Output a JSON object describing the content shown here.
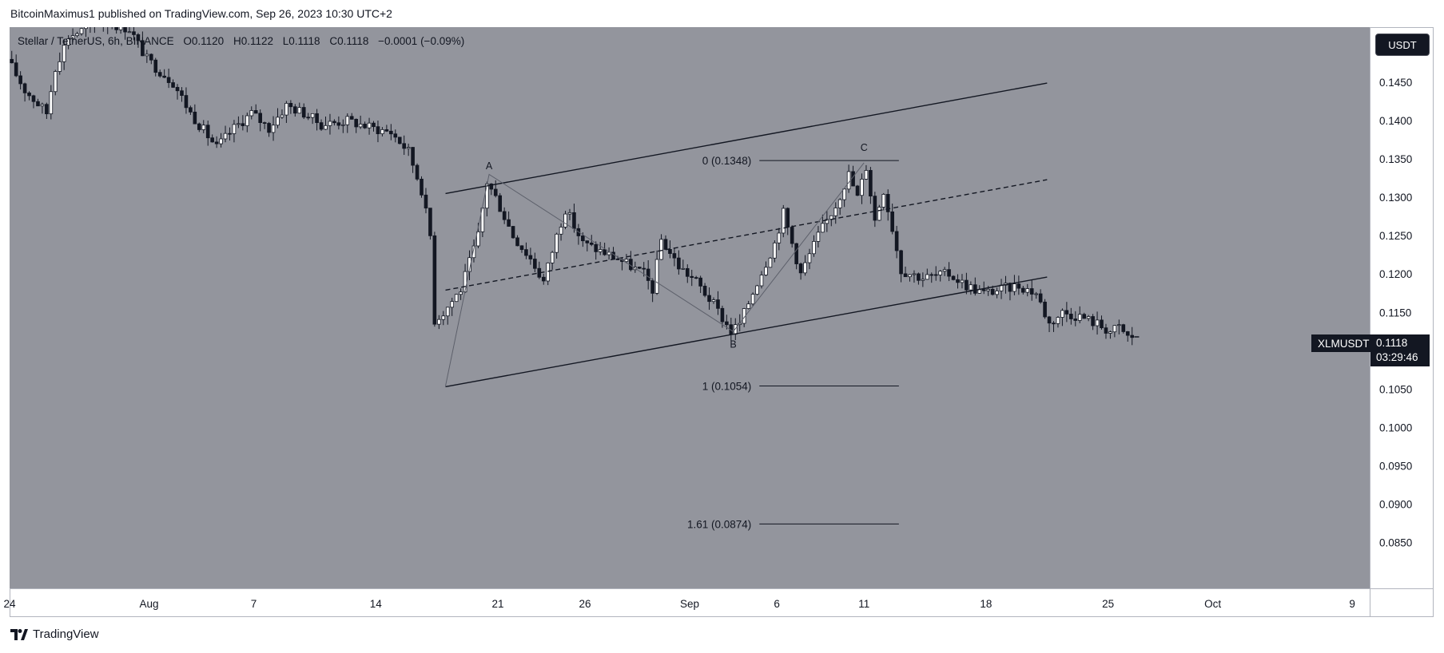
{
  "header": {
    "published_line": "BitcoinMaximus1 published on TradingView.com, Sep 26, 2023 10:30 UTC+2"
  },
  "legend": {
    "symbol": "Stellar / TetherUS, 6h, BINANCE",
    "o_label": "O",
    "o_value": "0.1120",
    "h_label": "H",
    "h_value": "0.1122",
    "l_label": "L",
    "l_value": "0.1118",
    "c_label": "C",
    "c_value": "0.1118",
    "change": "−0.0001 (−0.09%)"
  },
  "toolbar": {
    "currency_label": "USDT"
  },
  "price_tag": {
    "symbol": "XLMUSDT",
    "price": "0.1118",
    "countdown": "03:29:46"
  },
  "footer": {
    "brand": "TradingView"
  },
  "colors": {
    "plot_bg": "#93959d",
    "candle_up": "#ffffff",
    "candle_down": "#131722",
    "lines": "#131722"
  },
  "chart_data": {
    "type": "candlestick",
    "title": "",
    "y_range": [
      0.079,
      0.1522
    ],
    "y_ticks": [
      "0.1450",
      "0.1400",
      "0.1350",
      "0.1300",
      "0.1250",
      "0.1200",
      "0.1150",
      "0.1100",
      "0.1050",
      "0.1000",
      "0.0950",
      "0.0900",
      "0.0850"
    ],
    "y_tick_values": [
      0.145,
      0.14,
      0.135,
      0.13,
      0.125,
      0.12,
      0.115,
      0.11,
      0.105,
      0.1,
      0.095,
      0.09,
      0.085
    ],
    "x_range": [
      "2023-07-24T00:00",
      "2023-10-10T00:00"
    ],
    "x_ticks": [
      {
        "label": "24",
        "date": "2023-07-24"
      },
      {
        "label": "Aug",
        "date": "2023-08-01"
      },
      {
        "label": "7",
        "date": "2023-08-07"
      },
      {
        "label": "14",
        "date": "2023-08-14"
      },
      {
        "label": "21",
        "date": "2023-08-21"
      },
      {
        "label": "26",
        "date": "2023-08-26"
      },
      {
        "label": "Sep",
        "date": "2023-09-01"
      },
      {
        "label": "6",
        "date": "2023-09-06"
      },
      {
        "label": "11",
        "date": "2023-09-11"
      },
      {
        "label": "18",
        "date": "2023-09-18"
      },
      {
        "label": "25",
        "date": "2023-09-25"
      },
      {
        "label": "Oct",
        "date": "2023-10-01"
      },
      {
        "label": "9",
        "date": "2023-10-09"
      }
    ],
    "price_path": [
      {
        "date": "2023-07-24T00:00",
        "price": 0.148
      },
      {
        "date": "2023-07-25T00:00",
        "price": 0.144
      },
      {
        "date": "2023-07-26T06:00",
        "price": 0.141
      },
      {
        "date": "2023-07-26T18:00",
        "price": 0.147
      },
      {
        "date": "2023-07-27T12:00",
        "price": 0.151
      },
      {
        "date": "2023-07-29T12:00",
        "price": 0.153
      },
      {
        "date": "2023-07-31T00:00",
        "price": 0.152
      },
      {
        "date": "2023-08-01T00:00",
        "price": 0.148
      },
      {
        "date": "2023-08-02T12:00",
        "price": 0.145
      },
      {
        "date": "2023-08-03T12:00",
        "price": 0.141
      },
      {
        "date": "2023-08-05T00:00",
        "price": 0.1365
      },
      {
        "date": "2023-08-06T00:00",
        "price": 0.139
      },
      {
        "date": "2023-08-07T00:00",
        "price": 0.141
      },
      {
        "date": "2023-08-08T00:00",
        "price": 0.139
      },
      {
        "date": "2023-08-09T00:00",
        "price": 0.142
      },
      {
        "date": "2023-08-10T00:00",
        "price": 0.141
      },
      {
        "date": "2023-08-11T00:00",
        "price": 0.1395
      },
      {
        "date": "2023-08-12T12:00",
        "price": 0.14
      },
      {
        "date": "2023-08-14T00:00",
        "price": 0.139
      },
      {
        "date": "2023-08-15T00:00",
        "price": 0.1385
      },
      {
        "date": "2023-08-16T00:00",
        "price": 0.136
      },
      {
        "date": "2023-08-16T18:00",
        "price": 0.131
      },
      {
        "date": "2023-08-17T06:00",
        "price": 0.125
      },
      {
        "date": "2023-08-17T12:00",
        "price": 0.114
      },
      {
        "date": "2023-08-18T00:00",
        "price": 0.115
      },
      {
        "date": "2023-08-19T00:00",
        "price": 0.118
      },
      {
        "date": "2023-08-20T00:00",
        "price": 0.125
      },
      {
        "date": "2023-08-20T12:00",
        "price": 0.132
      },
      {
        "date": "2023-08-21T00:00",
        "price": 0.13
      },
      {
        "date": "2023-08-22T00:00",
        "price": 0.125
      },
      {
        "date": "2023-08-23T00:00",
        "price": 0.122
      },
      {
        "date": "2023-08-23T18:00",
        "price": 0.119
      },
      {
        "date": "2023-08-24T12:00",
        "price": 0.125
      },
      {
        "date": "2023-08-25T00:00",
        "price": 0.1285
      },
      {
        "date": "2023-08-26T00:00",
        "price": 0.124
      },
      {
        "date": "2023-08-27T00:00",
        "price": 0.123
      },
      {
        "date": "2023-08-28T00:00",
        "price": 0.122
      },
      {
        "date": "2023-08-29T12:00",
        "price": 0.12
      },
      {
        "date": "2023-08-30T00:00",
        "price": 0.118
      },
      {
        "date": "2023-08-30T12:00",
        "price": 0.1245
      },
      {
        "date": "2023-08-31T12:00",
        "price": 0.121
      },
      {
        "date": "2023-09-01T12:00",
        "price": 0.119
      },
      {
        "date": "2023-09-02T12:00",
        "price": 0.116
      },
      {
        "date": "2023-09-03T12:00",
        "price": 0.1125
      },
      {
        "date": "2023-09-04T00:00",
        "price": 0.1135
      },
      {
        "date": "2023-09-05T00:00",
        "price": 0.119
      },
      {
        "date": "2023-09-06T00:00",
        "price": 0.124
      },
      {
        "date": "2023-09-06T12:00",
        "price": 0.128
      },
      {
        "date": "2023-09-07T12:00",
        "price": 0.12
      },
      {
        "date": "2023-09-08T12:00",
        "price": 0.125
      },
      {
        "date": "2023-09-09T12:00",
        "price": 0.129
      },
      {
        "date": "2023-09-10T06:00",
        "price": 0.133
      },
      {
        "date": "2023-09-10T18:00",
        "price": 0.13
      },
      {
        "date": "2023-09-11T06:00",
        "price": 0.134
      },
      {
        "date": "2023-09-11T18:00",
        "price": 0.127
      },
      {
        "date": "2023-09-12T06:00",
        "price": 0.131
      },
      {
        "date": "2023-09-12T18:00",
        "price": 0.126
      },
      {
        "date": "2023-09-13T06:00",
        "price": 0.1205
      },
      {
        "date": "2023-09-14T12:00",
        "price": 0.1195
      },
      {
        "date": "2023-09-16T00:00",
        "price": 0.12
      },
      {
        "date": "2023-09-17T00:00",
        "price": 0.1185
      },
      {
        "date": "2023-09-18T00:00",
        "price": 0.1175
      },
      {
        "date": "2023-09-19T00:00",
        "price": 0.118
      },
      {
        "date": "2023-09-20T00:00",
        "price": 0.1185
      },
      {
        "date": "2023-09-21T00:00",
        "price": 0.1175
      },
      {
        "date": "2023-09-21T18:00",
        "price": 0.1135
      },
      {
        "date": "2023-09-22T12:00",
        "price": 0.115
      },
      {
        "date": "2023-09-23T12:00",
        "price": 0.1145
      },
      {
        "date": "2023-09-24T12:00",
        "price": 0.1135
      },
      {
        "date": "2023-09-25T06:00",
        "price": 0.1125
      },
      {
        "date": "2023-09-25T18:00",
        "price": 0.113
      },
      {
        "date": "2023-09-26T06:00",
        "price": 0.1118
      }
    ],
    "channel": {
      "upper": [
        {
          "date": "2023-08-18T00:00",
          "price": 0.1305
        },
        {
          "date": "2023-09-21T12:00",
          "price": 0.1449
        }
      ],
      "middle": [
        {
          "date": "2023-08-18T00:00",
          "price": 0.1179
        },
        {
          "date": "2023-09-21T12:00",
          "price": 0.1323
        }
      ],
      "lower": [
        {
          "date": "2023-08-18T00:00",
          "price": 0.1053
        },
        {
          "date": "2023-09-21T12:00",
          "price": 0.1196
        }
      ]
    },
    "wave_path": [
      {
        "date": "2023-08-18T00:00",
        "price": 0.1054
      },
      {
        "date": "2023-08-20T12:00",
        "price": 0.133
      },
      {
        "date": "2023-09-03T12:00",
        "price": 0.1125
      },
      {
        "date": "2023-09-11T00:00",
        "price": 0.1345
      }
    ],
    "wave_labels": [
      {
        "text": "A",
        "date": "2023-08-20T12:00",
        "price": 0.1341
      },
      {
        "text": "B",
        "date": "2023-09-03T12:00",
        "price": 0.1108
      },
      {
        "text": "C",
        "date": "2023-09-11T00:00",
        "price": 0.1365
      }
    ],
    "fib_levels": [
      {
        "label": "0 (0.1348)",
        "price": 0.1348
      },
      {
        "label": "1 (0.1054)",
        "price": 0.1054
      },
      {
        "label": "1.61 (0.0874)",
        "price": 0.0874
      }
    ],
    "fib_range": [
      "2023-09-05T00:00",
      "2023-09-13T00:00"
    ],
    "last_price": 0.1118
  }
}
